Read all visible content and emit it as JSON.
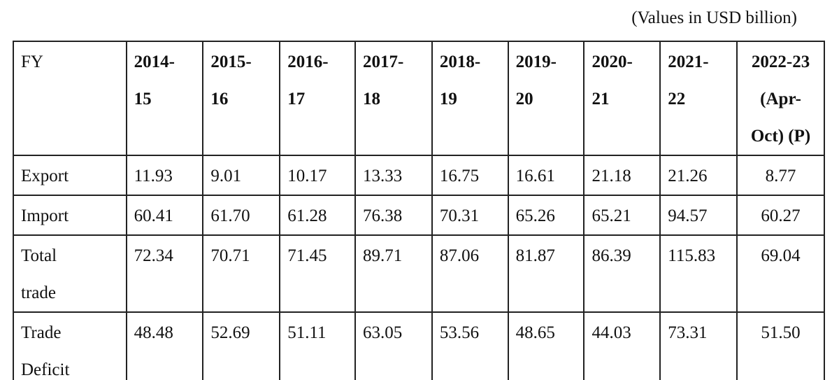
{
  "note": "(Values in USD billion)",
  "table": {
    "header": [
      "FY",
      "2014-15",
      "2015-16",
      "2016-17",
      "2017-18",
      "2018-19",
      "2019-20",
      "2020-21",
      "2021-22",
      "2022-23 (Apr-Oct) (P)"
    ],
    "rows": [
      [
        "Export",
        "11.93",
        "9.01",
        "10.17",
        "13.33",
        "16.75",
        "16.61",
        "21.18",
        "21.26",
        "8.77"
      ],
      [
        "Import",
        "60.41",
        "61.70",
        "61.28",
        "76.38",
        "70.31",
        "65.26",
        "65.21",
        "94.57",
        "60.27"
      ],
      [
        "Total trade",
        "72.34",
        "70.71",
        "71.45",
        "89.71",
        "87.06",
        "81.87",
        "86.39",
        "115.83",
        "69.04"
      ],
      [
        "Trade Deficit",
        "48.48",
        "52.69",
        "51.11",
        "63.05",
        "53.56",
        "48.65",
        "44.03",
        "73.31",
        "51.50"
      ]
    ]
  }
}
